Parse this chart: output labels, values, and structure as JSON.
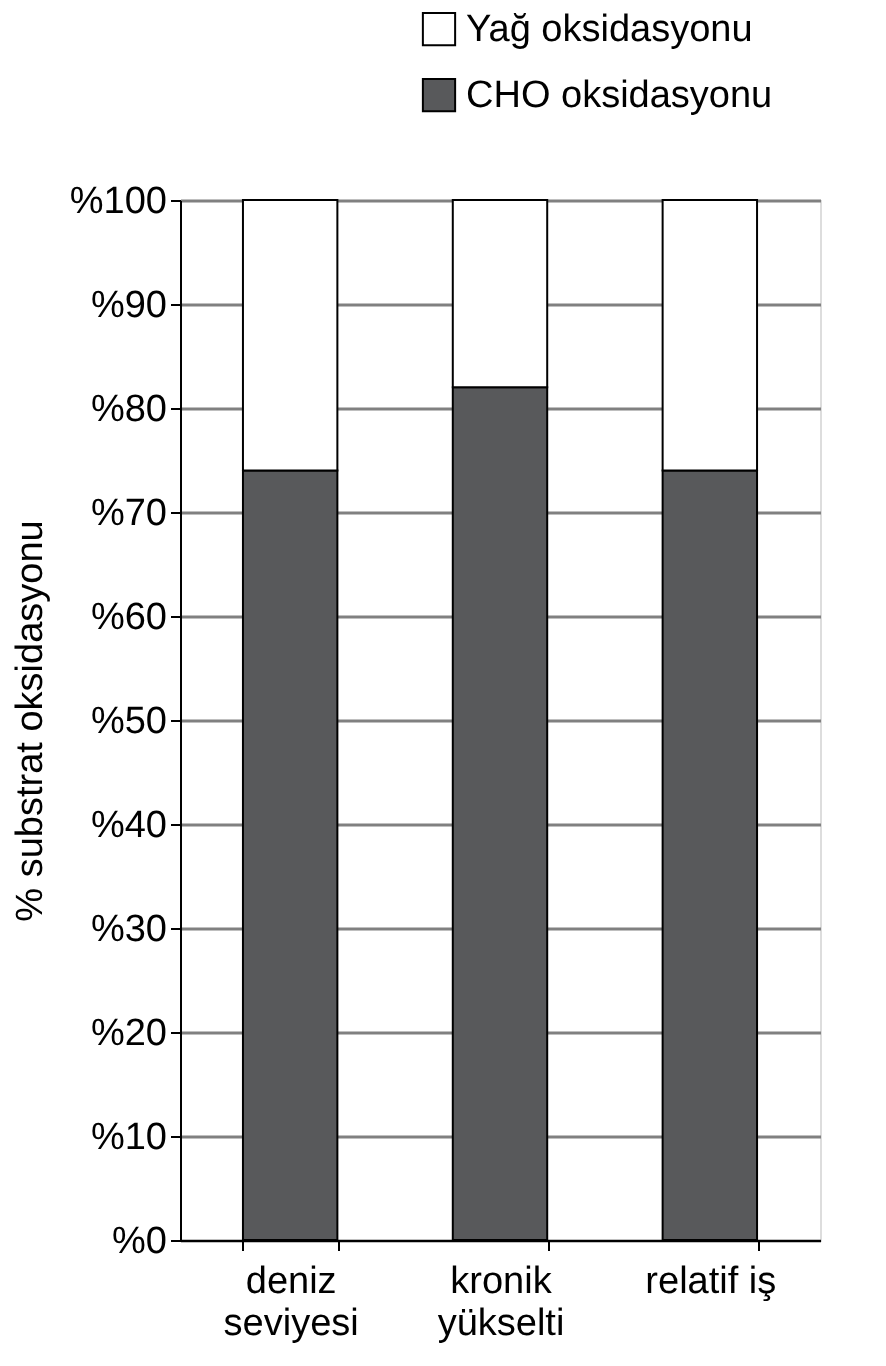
{
  "chart_data": {
    "type": "bar",
    "stacked": true,
    "categories": [
      "deniz\nseviyesi",
      "kronik\nyükselti",
      "relatif iş"
    ],
    "series": [
      {
        "name": "CHO oksidasyonu",
        "color": "#58595b",
        "values": [
          74,
          82,
          74
        ]
      },
      {
        "name": "Yağ oksidasyonu",
        "color": "#ffffff",
        "values": [
          26,
          18,
          26
        ]
      }
    ],
    "ylabel": "% substrat oksidasyonu",
    "ylim": [
      0,
      100
    ],
    "yticks": [
      {
        "value": 0,
        "label": "%0"
      },
      {
        "value": 10,
        "label": "%10"
      },
      {
        "value": 20,
        "label": "%20"
      },
      {
        "value": 30,
        "label": "%30"
      },
      {
        "value": 40,
        "label": "%40"
      },
      {
        "value": 50,
        "label": "%50"
      },
      {
        "value": 60,
        "label": "%60"
      },
      {
        "value": 70,
        "label": "%70"
      },
      {
        "value": 80,
        "label": "%80"
      },
      {
        "value": 90,
        "label": "%90"
      },
      {
        "value": 100,
        "label": "%100"
      }
    ],
    "grid": "y",
    "legend": "top right"
  }
}
